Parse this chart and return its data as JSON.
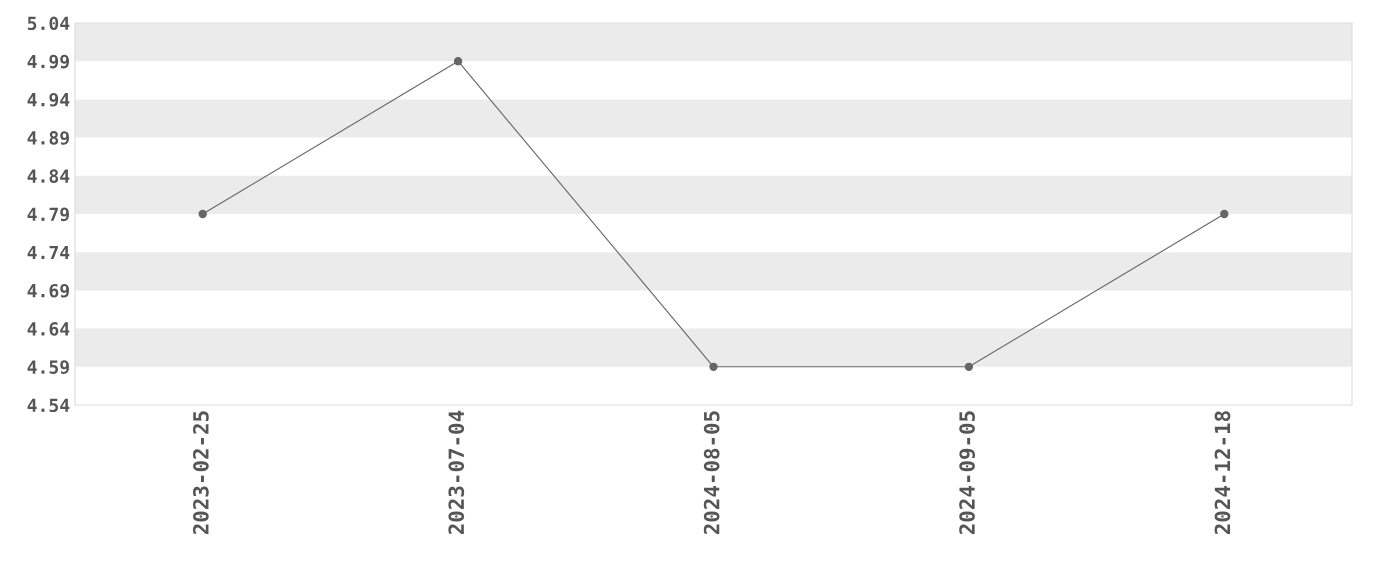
{
  "chart_data": {
    "type": "line",
    "categories": [
      "2023-02-25",
      "2023-07-04",
      "2024-08-05",
      "2024-09-05",
      "2024-12-18"
    ],
    "series": [
      {
        "color": "#666666",
        "values": [
          4.79,
          4.99,
          4.59,
          4.59,
          4.79
        ]
      }
    ],
    "ylim": [
      4.54,
      5.04
    ],
    "yticks": [
      4.54,
      4.59,
      4.64,
      4.69,
      4.74,
      4.79,
      4.84,
      4.89,
      4.94,
      4.99,
      5.04
    ],
    "bands": [
      {
        "axis": "y",
        "from": 4.59,
        "to": 4.64,
        "color": "#ebebeb"
      },
      {
        "axis": "y",
        "from": 4.69,
        "to": 4.74,
        "color": "#ebebeb"
      },
      {
        "axis": "y",
        "from": 4.79,
        "to": 4.84,
        "color": "#ebebeb"
      },
      {
        "axis": "y",
        "from": 4.89,
        "to": 4.94,
        "color": "#ebebeb"
      },
      {
        "axis": "y",
        "from": 4.99,
        "to": 5.04,
        "color": "#ebebeb"
      }
    ],
    "marker": "circle",
    "line_style": "solid"
  }
}
